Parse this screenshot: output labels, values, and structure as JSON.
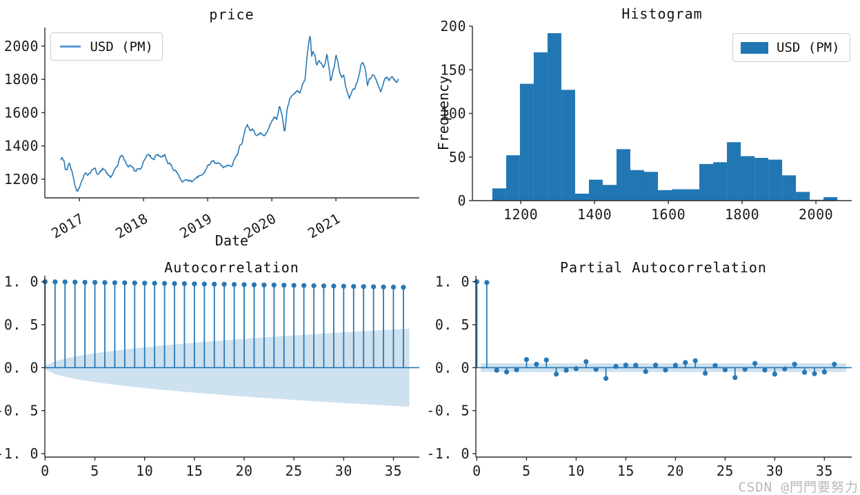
{
  "watermark": "CSDN @門門要努力",
  "chart_data": [
    {
      "type": "line",
      "title": "price",
      "xlabel": "Date",
      "legend_label": "USD (PM)",
      "color": "#2878b5",
      "xlim": [
        2016.46,
        2022.3
      ],
      "ylim": [
        1088,
        2111
      ],
      "xticks": {
        "values": [
          2017,
          2018,
          2019,
          2020,
          2021
        ],
        "labels": [
          "2017",
          "2018",
          "2019",
          "2020",
          "2021"
        ]
      },
      "yticks": {
        "values": [
          1200,
          1400,
          1600,
          1800,
          2000
        ],
        "labels": [
          "1200",
          "1400",
          "1600",
          "1800",
          "2000"
        ]
      },
      "noise_amplitude": 5,
      "series": [
        {
          "name": "USD (PM)",
          "points": [
            [
              2016.71,
              1318
            ],
            [
              2016.73,
              1330
            ],
            [
              2016.76,
              1308
            ],
            [
              2016.78,
              1255
            ],
            [
              2016.81,
              1262
            ],
            [
              2016.84,
              1300
            ],
            [
              2016.86,
              1275
            ],
            [
              2016.89,
              1235
            ],
            [
              2016.92,
              1180
            ],
            [
              2016.95,
              1135
            ],
            [
              2016.97,
              1128
            ],
            [
              2017.0,
              1152
            ],
            [
              2017.03,
              1185
            ],
            [
              2017.06,
              1210
            ],
            [
              2017.09,
              1240
            ],
            [
              2017.12,
              1225
            ],
            [
              2017.16,
              1235
            ],
            [
              2017.2,
              1255
            ],
            [
              2017.24,
              1270
            ],
            [
              2017.28,
              1225
            ],
            [
              2017.32,
              1242
            ],
            [
              2017.36,
              1262
            ],
            [
              2017.4,
              1255
            ],
            [
              2017.44,
              1230
            ],
            [
              2017.48,
              1212
            ],
            [
              2017.52,
              1230
            ],
            [
              2017.56,
              1268
            ],
            [
              2017.6,
              1285
            ],
            [
              2017.63,
              1330
            ],
            [
              2017.67,
              1345
            ],
            [
              2017.71,
              1310
            ],
            [
              2017.75,
              1275
            ],
            [
              2017.79,
              1282
            ],
            [
              2017.83,
              1270
            ],
            [
              2017.87,
              1245
            ],
            [
              2017.91,
              1262
            ],
            [
              2017.95,
              1258
            ],
            [
              2018.0,
              1305
            ],
            [
              2018.04,
              1340
            ],
            [
              2018.08,
              1352
            ],
            [
              2018.12,
              1330
            ],
            [
              2018.16,
              1318
            ],
            [
              2018.2,
              1350
            ],
            [
              2018.24,
              1342
            ],
            [
              2018.28,
              1335
            ],
            [
              2018.33,
              1345
            ],
            [
              2018.37,
              1300
            ],
            [
              2018.42,
              1292
            ],
            [
              2018.46,
              1258
            ],
            [
              2018.5,
              1252
            ],
            [
              2018.55,
              1222
            ],
            [
              2018.6,
              1178
            ],
            [
              2018.65,
              1196
            ],
            [
              2018.7,
              1192
            ],
            [
              2018.75,
              1188
            ],
            [
              2018.8,
              1203
            ],
            [
              2018.85,
              1215
            ],
            [
              2018.9,
              1222
            ],
            [
              2018.95,
              1240
            ],
            [
              2019.0,
              1282
            ],
            [
              2019.04,
              1292
            ],
            [
              2019.08,
              1312
            ],
            [
              2019.12,
              1295
            ],
            [
              2019.16,
              1302
            ],
            [
              2019.2,
              1292
            ],
            [
              2019.24,
              1270
            ],
            [
              2019.28,
              1278
            ],
            [
              2019.33,
              1285
            ],
            [
              2019.38,
              1278
            ],
            [
              2019.42,
              1328
            ],
            [
              2019.46,
              1342
            ],
            [
              2019.5,
              1400
            ],
            [
              2019.54,
              1418
            ],
            [
              2019.58,
              1498
            ],
            [
              2019.62,
              1528
            ],
            [
              2019.66,
              1488
            ],
            [
              2019.7,
              1502
            ],
            [
              2019.74,
              1472
            ],
            [
              2019.78,
              1462
            ],
            [
              2019.83,
              1478
            ],
            [
              2019.88,
              1462
            ],
            [
              2019.92,
              1475
            ],
            [
              2019.96,
              1515
            ],
            [
              2020.0,
              1552
            ],
            [
              2020.04,
              1572
            ],
            [
              2020.08,
              1562
            ],
            [
              2020.12,
              1642
            ],
            [
              2020.16,
              1582
            ],
            [
              2020.2,
              1478
            ],
            [
              2020.24,
              1622
            ],
            [
              2020.28,
              1682
            ],
            [
              2020.32,
              1702
            ],
            [
              2020.36,
              1715
            ],
            [
              2020.4,
              1732
            ],
            [
              2020.44,
              1718
            ],
            [
              2020.48,
              1772
            ],
            [
              2020.52,
              1802
            ],
            [
              2020.55,
              1942
            ],
            [
              2020.58,
              2032
            ],
            [
              2020.6,
              2067
            ],
            [
              2020.62,
              1932
            ],
            [
              2020.64,
              1972
            ],
            [
              2020.67,
              1942
            ],
            [
              2020.7,
              1882
            ],
            [
              2020.73,
              1912
            ],
            [
              2020.76,
              1902
            ],
            [
              2020.8,
              1872
            ],
            [
              2020.83,
              1892
            ],
            [
              2020.86,
              1952
            ],
            [
              2020.89,
              1872
            ],
            [
              2020.92,
              1782
            ],
            [
              2020.95,
              1842
            ],
            [
              2020.98,
              1882
            ],
            [
              2021.0,
              1952
            ],
            [
              2021.03,
              1902
            ],
            [
              2021.06,
              1842
            ],
            [
              2021.09,
              1808
            ],
            [
              2021.12,
              1832
            ],
            [
              2021.15,
              1762
            ],
            [
              2021.18,
              1722
            ],
            [
              2021.21,
              1688
            ],
            [
              2021.25,
              1732
            ],
            [
              2021.29,
              1742
            ],
            [
              2021.33,
              1782
            ],
            [
              2021.37,
              1842
            ],
            [
              2021.4,
              1902
            ],
            [
              2021.43,
              1892
            ],
            [
              2021.46,
              1862
            ],
            [
              2021.49,
              1762
            ],
            [
              2021.52,
              1802
            ],
            [
              2021.55,
              1812
            ],
            [
              2021.58,
              1832
            ],
            [
              2021.61,
              1812
            ],
            [
              2021.64,
              1782
            ],
            [
              2021.67,
              1752
            ],
            [
              2021.7,
              1722
            ],
            [
              2021.73,
              1762
            ],
            [
              2021.76,
              1802
            ],
            [
              2021.79,
              1812
            ],
            [
              2021.83,
              1792
            ],
            [
              2021.87,
              1822
            ],
            [
              2021.9,
              1802
            ],
            [
              2021.94,
              1782
            ],
            [
              2021.98,
              1800
            ]
          ]
        }
      ]
    },
    {
      "type": "histogram",
      "title": "Histogram",
      "ylabel": "Frequency",
      "legend_label": "USD (PM)",
      "color": "#2077b4",
      "xlim": [
        1069,
        2097
      ],
      "ylim": [
        0,
        200
      ],
      "xticks": {
        "values": [
          1200,
          1400,
          1600,
          1800,
          2000
        ],
        "labels": [
          "1200",
          "1400",
          "1600",
          "1800",
          "2000"
        ]
      },
      "yticks": {
        "values": [
          0,
          50,
          100,
          150,
          200
        ],
        "labels": [
          "0",
          "50",
          "100",
          "150",
          "200"
        ]
      },
      "bins": {
        "start": 1123,
        "width": 37.4,
        "counts": [
          14,
          52,
          134,
          170,
          192,
          127,
          8,
          24,
          18,
          59,
          35,
          33,
          12,
          13,
          13,
          42,
          44,
          67,
          51,
          49,
          47,
          29,
          10,
          1,
          4
        ]
      }
    },
    {
      "type": "stem",
      "title": "Autocorrelation",
      "color": "#2878b5",
      "band_color": "#9dc3e0",
      "xlim": [
        -0.03,
        37.6
      ],
      "ylim": [
        -1.04,
        1.069
      ],
      "xticks": {
        "values": [
          0,
          5,
          10,
          15,
          20,
          25,
          30,
          35
        ],
        "labels": [
          "0",
          "5",
          "10",
          "15",
          "20",
          "25",
          "30",
          "35"
        ]
      },
      "yticks": {
        "values": [
          1.0,
          0.5,
          0.0,
          -0.5,
          -1.0
        ],
        "labels": [
          "1. 0",
          "0. 5",
          "0. 0",
          "-0. 5",
          "-1. 0"
        ]
      },
      "values": [
        1.0,
        0.998,
        0.997,
        0.995,
        0.993,
        0.992,
        0.99,
        0.988,
        0.987,
        0.985,
        0.983,
        0.982,
        0.98,
        0.978,
        0.977,
        0.975,
        0.973,
        0.971,
        0.97,
        0.968,
        0.966,
        0.964,
        0.962,
        0.961,
        0.959,
        0.957,
        0.955,
        0.953,
        0.951,
        0.949,
        0.947,
        0.945,
        0.943,
        0.941,
        0.939,
        0.937,
        0.935
      ],
      "conf_band": {
        "shape": "expanding",
        "lags": [
          0,
          1,
          2,
          3,
          4,
          5,
          6,
          7,
          8,
          9,
          10,
          11,
          12,
          13,
          14,
          15,
          16,
          17,
          18,
          19,
          20,
          21,
          22,
          23,
          24,
          25,
          26,
          27,
          28,
          29,
          30,
          31,
          32,
          33,
          34,
          35,
          36,
          36.6
        ],
        "upper": [
          0.02,
          0.075,
          0.106,
          0.13,
          0.15,
          0.168,
          0.184,
          0.198,
          0.212,
          0.225,
          0.237,
          0.249,
          0.26,
          0.27,
          0.281,
          0.29,
          0.3,
          0.309,
          0.318,
          0.327,
          0.335,
          0.344,
          0.352,
          0.36,
          0.367,
          0.375,
          0.382,
          0.39,
          0.397,
          0.404,
          0.411,
          0.418,
          0.424,
          0.431,
          0.437,
          0.444,
          0.45,
          0.455
        ]
      }
    },
    {
      "type": "stem",
      "title": "Partial Autocorrelation",
      "color": "#2878b5",
      "band_color": "#9dc3e0",
      "xlim": [
        -0.1,
        37.75
      ],
      "ylim": [
        -1.04,
        1.069
      ],
      "xticks": {
        "values": [
          0,
          5,
          10,
          15,
          20,
          25,
          30,
          35
        ],
        "labels": [
          "0",
          "5",
          "10",
          "15",
          "20",
          "25",
          "30",
          "35"
        ]
      },
      "yticks": {
        "values": [
          1.0,
          0.5,
          0.0,
          -0.5,
          -1.0
        ],
        "labels": [
          "1. 0",
          "0. 5",
          "0. 0",
          "-0. 5",
          "-1. 0"
        ]
      },
      "values": [
        1.0,
        0.99,
        -0.03,
        -0.05,
        -0.025,
        0.095,
        0.04,
        0.09,
        -0.075,
        -0.03,
        -0.012,
        0.07,
        -0.02,
        -0.125,
        0.015,
        0.03,
        0.028,
        -0.045,
        0.03,
        -0.028,
        0.028,
        0.06,
        0.08,
        -0.065,
        0.025,
        -0.025,
        -0.115,
        -0.02,
        0.05,
        -0.028,
        -0.075,
        -0.015,
        0.04,
        -0.055,
        -0.07,
        -0.05,
        0.04
      ],
      "conf_band": {
        "shape": "constant",
        "halfwidth": 0.05,
        "from": 0.4,
        "to": 37.2
      }
    }
  ]
}
